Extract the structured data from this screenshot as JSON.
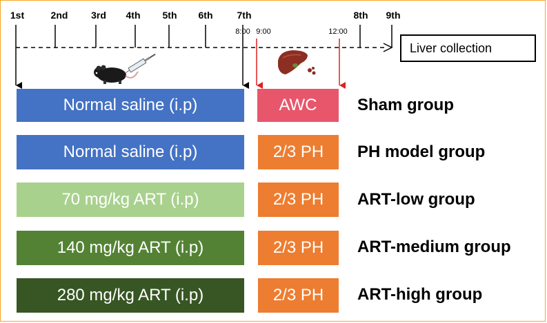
{
  "timeline": {
    "days": [
      "1st",
      "2nd",
      "3rd",
      "4th",
      "5th",
      "6th",
      "7th",
      "8th",
      "9th"
    ],
    "times": [
      "8:00",
      "9:00",
      "12:00"
    ],
    "endpoint": "Liver collection"
  },
  "groups": [
    {
      "treatment": "Normal saline (i.p)",
      "procedure": "AWC",
      "label": "Sham group",
      "treatment_color": "#4472c4",
      "procedure_color": "#e8566b"
    },
    {
      "treatment": "Normal saline (i.p)",
      "procedure": "2/3 PH",
      "label": "PH model group",
      "treatment_color": "#4472c4",
      "procedure_color": "#ed7d31"
    },
    {
      "treatment": "70 mg/kg ART (i.p)",
      "procedure": "2/3 PH",
      "label": "ART-low group",
      "treatment_color": "#a9d18e",
      "procedure_color": "#ed7d31"
    },
    {
      "treatment": "140 mg/kg ART (i.p)",
      "procedure": "2/3 PH",
      "label": "ART-medium group",
      "treatment_color": "#548235",
      "procedure_color": "#ed7d31"
    },
    {
      "treatment": "280 mg/kg ART  (i.p)",
      "procedure": "2/3 PH",
      "label": "ART-high group",
      "treatment_color": "#375623",
      "procedure_color": "#ed7d31"
    }
  ],
  "colors": {
    "arrow_black": "#000000",
    "arrow_red": "#e02020",
    "frame": "#f5a623"
  }
}
